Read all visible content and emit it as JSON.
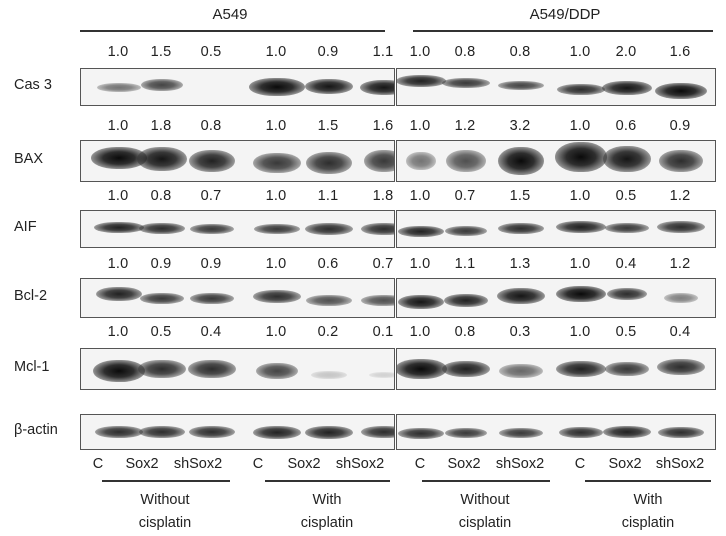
{
  "cell_lines": [
    "A549",
    "A549/DDP"
  ],
  "rows": [
    {
      "label": "Cas 3",
      "values": [
        [
          "1.0",
          "1.5",
          "0.5",
          "1.0",
          "0.9",
          "1.1"
        ],
        [
          "1.0",
          "0.8",
          "0.8",
          "1.0",
          "2.0",
          "1.6"
        ]
      ]
    },
    {
      "label": "BAX",
      "values": [
        [
          "1.0",
          "1.8",
          "0.8",
          "1.0",
          "1.5",
          "1.6"
        ],
        [
          "1.0",
          "1.2",
          "3.2",
          "1.0",
          "0.6",
          "0.9"
        ]
      ]
    },
    {
      "label": "AIF",
      "values": [
        [
          "1.0",
          "0.8",
          "0.7",
          "1.0",
          "1.1",
          "1.8"
        ],
        [
          "1.0",
          "0.7",
          "1.5",
          "1.0",
          "0.5",
          "1.2"
        ]
      ]
    },
    {
      "label": "Bcl-2",
      "values": [
        [
          "1.0",
          "0.9",
          "0.9",
          "1.0",
          "0.6",
          "0.7"
        ],
        [
          "1.0",
          "1.1",
          "1.3",
          "1.0",
          "0.4",
          "1.2"
        ]
      ]
    },
    {
      "label": "Mcl-1",
      "values": [
        [
          "1.0",
          "0.5",
          "0.4",
          "1.0",
          "0.2",
          "0.1"
        ],
        [
          "1.0",
          "0.8",
          "0.3",
          "1.0",
          "0.5",
          "0.4"
        ]
      ]
    },
    {
      "label": "β-actin",
      "values": [
        [],
        []
      ]
    }
  ],
  "lanes": [
    "C",
    "Sox2",
    "shSox2",
    "C",
    "Sox2",
    "shSox2",
    "C",
    "Sox2",
    "shSox2",
    "C",
    "Sox2",
    "shSox2"
  ],
  "groups": [
    {
      "line1": "Without",
      "line2": "cisplatin"
    },
    {
      "line1": "With",
      "line2": "cisplatin"
    },
    {
      "line1": "Without",
      "line2": "cisplatin"
    },
    {
      "line1": "With",
      "line2": "cisplatin"
    }
  ],
  "colors": {
    "band": "#111111",
    "membrane": "#f4f4f4",
    "border": "#555555"
  }
}
